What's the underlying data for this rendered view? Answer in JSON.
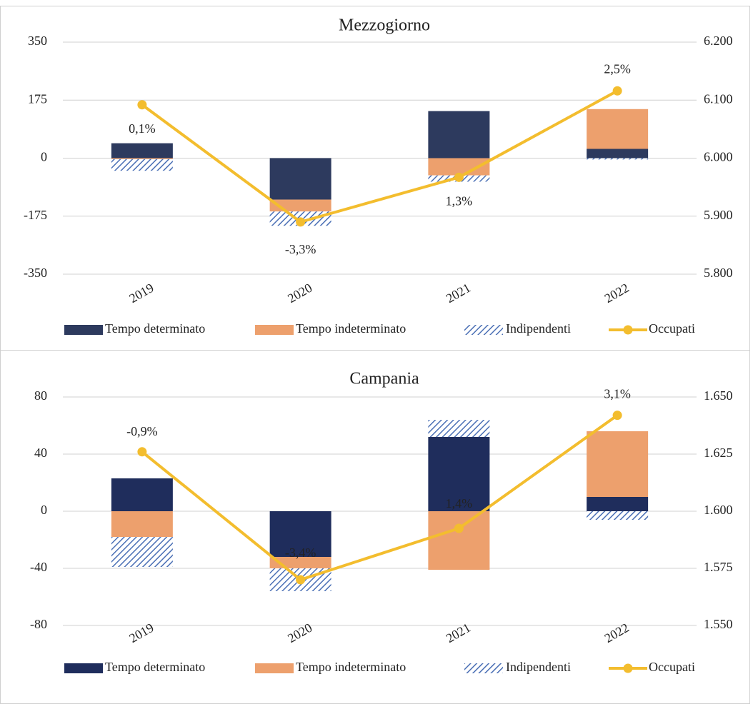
{
  "chart_data": [
    {
      "type": "bar",
      "title": "Mezzogiorno",
      "categories": [
        "2019",
        "2020",
        "2021",
        "2022"
      ],
      "series": [
        {
          "name": "Tempo determinato",
          "color": "#2d3a5e",
          "values": [
            45,
            -125,
            142,
            28
          ]
        },
        {
          "name": "Tempo indeterminato",
          "color": "#eda06d",
          "values": [
            -3,
            -36,
            -52,
            120
          ]
        },
        {
          "name": "Indipendenti",
          "color": "#4a6fb5",
          "hatch": true,
          "values": [
            -35,
            -43,
            -19,
            -4
          ]
        },
        {
          "name": "Occupati",
          "color": "#f3bd2e",
          "type": "line",
          "axis": "y2",
          "values": [
            6092,
            5890,
            5967,
            6116
          ]
        }
      ],
      "annotations": [
        "0,1%",
        "-3,3%",
        "1,3%",
        "2,5%"
      ],
      "annotation_colors": [
        "#222222",
        "#222222",
        "#222222",
        "#222222"
      ],
      "ylim": [
        -350,
        350
      ],
      "yticks": [
        350,
        175,
        0,
        -175,
        -350
      ],
      "y2lim": [
        5800,
        6200
      ],
      "y2ticks": [
        {
          "value": 6200,
          "label": "6.200"
        },
        {
          "value": 6100,
          "label": "6.100"
        },
        {
          "value": 6000,
          "label": "6.000"
        },
        {
          "value": 5900,
          "label": "5.900"
        },
        {
          "value": 5800,
          "label": "5.800"
        }
      ],
      "grid": true,
      "legend": "bottom"
    },
    {
      "type": "bar",
      "title": "Campania",
      "categories": [
        "2019",
        "2020",
        "2021",
        "2022"
      ],
      "series": [
        {
          "name": "Tempo determinato",
          "color": "#1f2d5c",
          "values": [
            23,
            -32,
            52,
            10
          ]
        },
        {
          "name": "Tempo indeterminato",
          "color": "#eda06d",
          "values": [
            -18,
            -8,
            -41,
            46
          ]
        },
        {
          "name": "Indipendenti",
          "color": "#4a6fb5",
          "hatch": true,
          "values": [
            -21,
            -16,
            12,
            -6
          ]
        },
        {
          "name": "Occupati",
          "color": "#f3bd2e",
          "type": "line",
          "axis": "y2",
          "values": [
            1626,
            1570,
            1592.5,
            1642
          ]
        }
      ],
      "annotations": [
        "-0,9%",
        "-3,4%",
        "1,4%",
        "3,1%"
      ],
      "annotation_colors": [
        "#222222",
        "#ffffff",
        "#ffffff",
        "#222222"
      ],
      "ylim": [
        -80,
        80
      ],
      "yticks": [
        80,
        40,
        0,
        -40,
        -80
      ],
      "y2lim": [
        1550,
        1650
      ],
      "y2ticks": [
        {
          "value": 1650,
          "label": "1.650"
        },
        {
          "value": 1625,
          "label": "1.625"
        },
        {
          "value": 1600,
          "label": "1.600"
        },
        {
          "value": 1575,
          "label": "1.575"
        },
        {
          "value": 1550,
          "label": "1.550"
        }
      ],
      "grid": true,
      "legend": "bottom"
    }
  ]
}
